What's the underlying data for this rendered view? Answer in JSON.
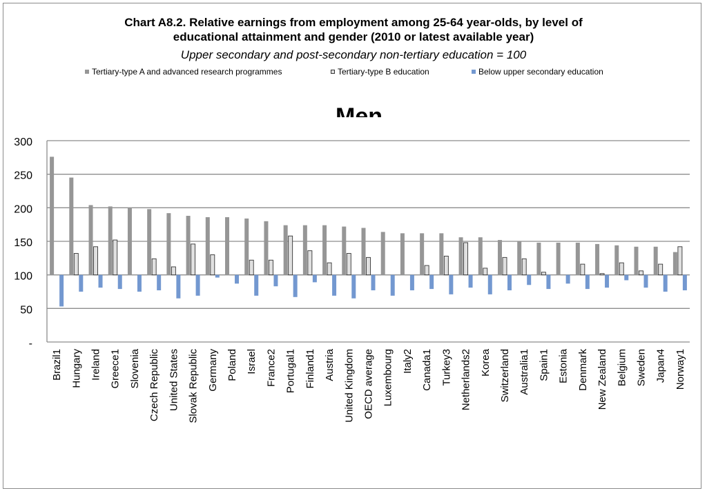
{
  "chart_data": {
    "type": "bar",
    "title": "Chart A8.2. Relative earnings from employment among 25-64 year-olds, by level of educational attainment and gender (2010 or latest available year)",
    "title_lines": [
      "Chart A8.2. Relative earnings from employment among 25-64 year-olds, by level of",
      "educational attainment and gender (2010 or latest available year)"
    ],
    "subtitle": "Upper secondary and post-secondary non-tertiary education = 100",
    "panel_title": "Men",
    "ylim": [
      0,
      300
    ],
    "baseline": 100,
    "y_ticks": [
      "-",
      "50",
      "100",
      "150",
      "200",
      "250",
      "300"
    ],
    "y_tick_values": [
      0,
      50,
      100,
      150,
      200,
      250,
      300
    ],
    "grid": true,
    "legend_position": "top",
    "categories": [
      "Brazil1",
      "Hungary",
      "Ireland",
      "Greece1",
      "Slovenia",
      "Czech Republic",
      "United States",
      "Slovak Republic",
      "Germany",
      "Poland",
      "Israel",
      "France2",
      "Portugal1",
      "Finland1",
      "Austria",
      "United Kingdom",
      "OECD average",
      "Luxembourg",
      "Italy2",
      "Canada1",
      "Turkey3",
      "Netherlands2",
      "Korea",
      "Switzerland",
      "Australia1",
      "Spain1",
      "Estonia",
      "Denmark",
      "New Zealand",
      "Belgium",
      "Sweden",
      "Japan4",
      "Norway1"
    ],
    "series": [
      {
        "name": "Tertiary-type A and advanced research programmes",
        "color": "#969696",
        "values": [
          276,
          245,
          204,
          202,
          200,
          198,
          192,
          188,
          186,
          186,
          184,
          180,
          174,
          174,
          174,
          172,
          170,
          164,
          162,
          162,
          162,
          156,
          156,
          152,
          150,
          148,
          148,
          148,
          146,
          144,
          142,
          142,
          134
        ]
      },
      {
        "name": "Tertiary-type B education",
        "color": "#e0e0e0",
        "values": [
          null,
          132,
          142,
          152,
          null,
          124,
          112,
          146,
          130,
          null,
          122,
          122,
          158,
          136,
          118,
          132,
          126,
          null,
          null,
          114,
          128,
          148,
          110,
          126,
          124,
          104,
          null,
          116,
          102,
          118,
          106,
          116,
          142
        ]
      },
      {
        "name": "Below upper secondary education",
        "color": "#7398d0",
        "values": [
          53,
          75,
          81,
          79,
          75,
          77,
          65,
          69,
          96,
          87,
          69,
          83,
          67,
          89,
          69,
          65,
          77,
          69,
          77,
          79,
          71,
          81,
          71,
          77,
          85,
          79,
          87,
          79,
          81,
          92,
          81,
          75,
          77
        ]
      }
    ]
  }
}
